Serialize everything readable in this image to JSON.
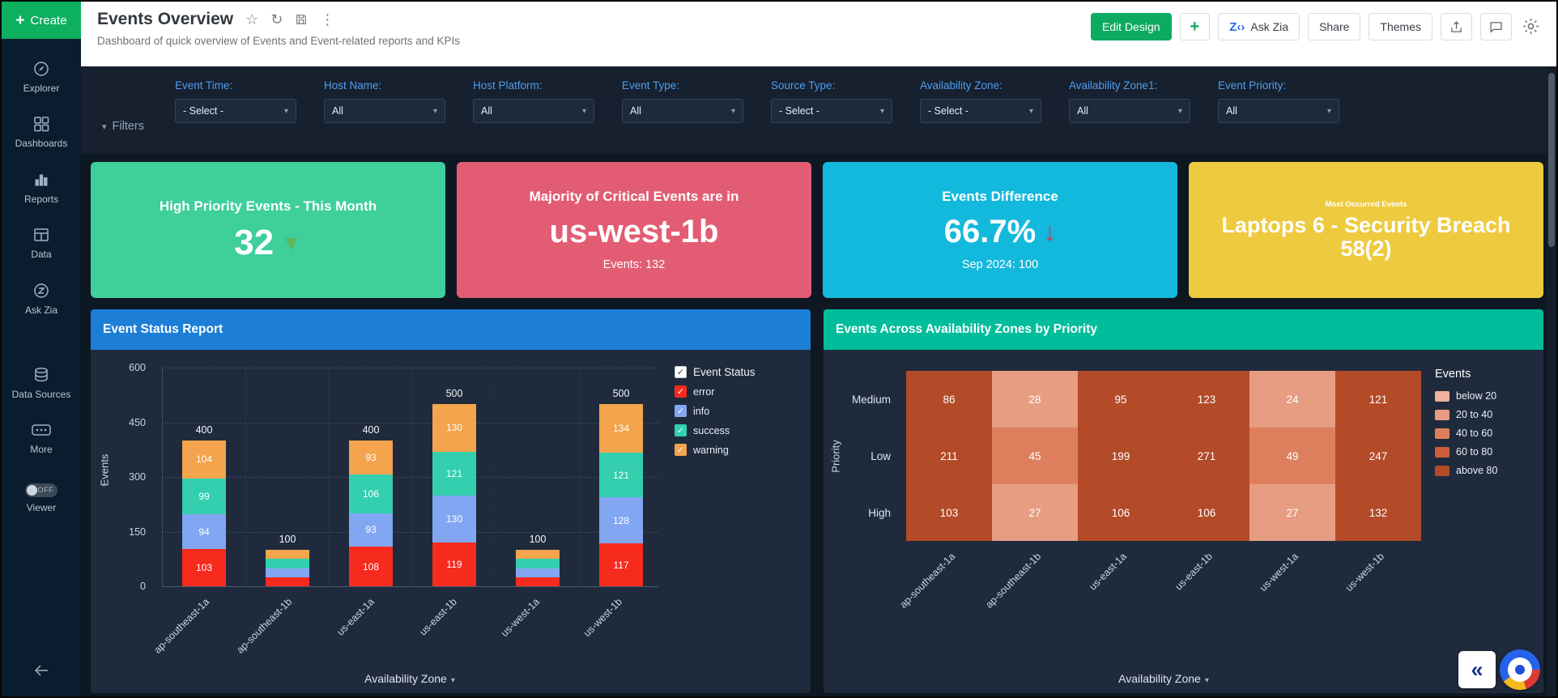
{
  "sidebar": {
    "create_label": "Create",
    "items": [
      {
        "label": "Explorer"
      },
      {
        "label": "Dashboards"
      },
      {
        "label": "Reports"
      },
      {
        "label": "Data"
      },
      {
        "label": "Ask Zia"
      },
      {
        "label": "Data Sources"
      },
      {
        "label": "More"
      }
    ],
    "viewer": {
      "label": "Viewer",
      "toggle_state": "OFF"
    }
  },
  "header": {
    "title": "Events Overview",
    "subtitle": "Dashboard of quick overview of Events and Event-related reports and KPIs",
    "edit_design_label": "Edit Design",
    "ask_zia_label": "Ask Zia",
    "share_label": "Share",
    "themes_label": "Themes"
  },
  "filters": {
    "toggle_label": "Filters",
    "items": [
      {
        "label": "Event Time:",
        "value": "- Select -"
      },
      {
        "label": "Host Name:",
        "value": "All"
      },
      {
        "label": "Host Platform:",
        "value": "All"
      },
      {
        "label": "Event Type:",
        "value": "All"
      },
      {
        "label": "Source Type:",
        "value": "- Select -"
      },
      {
        "label": "Availability Zone:",
        "value": "- Select -"
      },
      {
        "label": "Availability Zone1:",
        "value": "All"
      },
      {
        "label": "Event Priority:",
        "value": "All"
      }
    ]
  },
  "kpis": [
    {
      "title": "High Priority Events - This Month",
      "value": "32",
      "trend": "down",
      "trend_color": "#5cb85c",
      "bg": "#3ecf9b"
    },
    {
      "title": "Majority of Critical Events are in",
      "value": "us-west-1b",
      "subtext": "Events: 132",
      "bg": "#e25d73"
    },
    {
      "title": "Events Difference",
      "value": "66.7%",
      "trend": "down",
      "trend_color": "#e8323c",
      "subtext": "Sep 2024: 100",
      "bg": "#12b9dc"
    },
    {
      "title": "Most Occurred Events",
      "value": "Laptops 6 - Security Breach 58(2)",
      "bg": "#eeca3e"
    }
  ],
  "chart_data": [
    {
      "type": "bar",
      "stacked": true,
      "title": "Event Status Report",
      "xlabel": "Availability Zone",
      "ylabel": "Events",
      "ylim": [
        0,
        600
      ],
      "yticks": [
        0,
        150,
        300,
        450,
        600
      ],
      "grid": "dotted-horizontal",
      "legend_position": "right",
      "legend_title": "Event Status",
      "categories": [
        "ap-southeast-1a",
        "ap-southeast-1b",
        "us-east-1a",
        "us-east-1b",
        "us-west-1a",
        "us-west-1b"
      ],
      "series": [
        {
          "name": "error",
          "color": "#f72a1e",
          "values": [
            103,
            25,
            108,
            119,
            25,
            117
          ]
        },
        {
          "name": "info",
          "color": "#82a6f2",
          "values": [
            94,
            25,
            93,
            130,
            25,
            128
          ]
        },
        {
          "name": "success",
          "color": "#33cfae",
          "values": [
            99,
            25,
            106,
            121,
            25,
            121
          ]
        },
        {
          "name": "warning",
          "color": "#f3a44d",
          "values": [
            104,
            25,
            93,
            130,
            25,
            134
          ]
        }
      ],
      "totals": [
        400,
        100,
        400,
        500,
        100,
        500
      ]
    },
    {
      "type": "heatmap",
      "title": "Events Across Availability Zones by Priority",
      "xlabel": "Availability Zone",
      "ylabel": "Priority",
      "rows": [
        "Medium",
        "Low",
        "High"
      ],
      "columns": [
        "ap-southeast-1a",
        "ap-southeast-1b",
        "us-east-1a",
        "us-east-1b",
        "us-west-1a",
        "us-west-1b"
      ],
      "values": [
        [
          86,
          28,
          95,
          123,
          24,
          121
        ],
        [
          211,
          45,
          199,
          271,
          49,
          247
        ],
        [
          103,
          27,
          106,
          106,
          27,
          132
        ]
      ],
      "legend_title": "Events",
      "thresholds": [
        20,
        40,
        60,
        80
      ],
      "buckets": [
        {
          "label": "below 20",
          "color": "#eeb19b"
        },
        {
          "label": "20 to 40",
          "color": "#e69d82"
        },
        {
          "label": "40 to 60",
          "color": "#dd7f5d"
        },
        {
          "label": "60 to 80",
          "color": "#cd5d3b"
        },
        {
          "label": "above 80",
          "color": "#b34a28"
        }
      ]
    }
  ]
}
